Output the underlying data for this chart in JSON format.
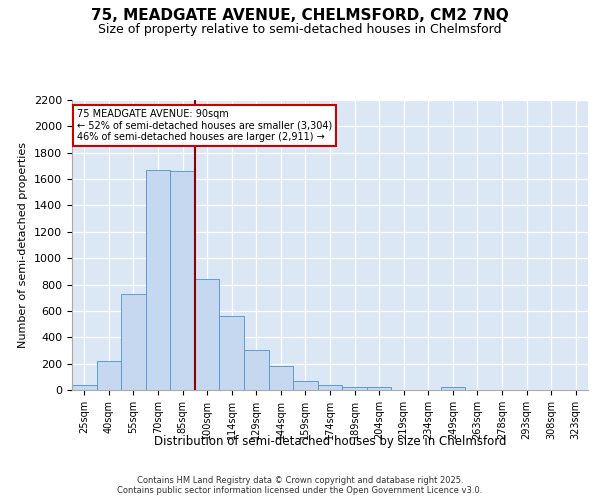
{
  "title_line1": "75, MEADGATE AVENUE, CHELMSFORD, CM2 7NQ",
  "title_line2": "Size of property relative to semi-detached houses in Chelmsford",
  "xlabel": "Distribution of semi-detached houses by size in Chelmsford",
  "ylabel": "Number of semi-detached properties",
  "bar_labels": [
    "25sqm",
    "40sqm",
    "55sqm",
    "70sqm",
    "85sqm",
    "100sqm",
    "114sqm",
    "129sqm",
    "144sqm",
    "159sqm",
    "174sqm",
    "189sqm",
    "204sqm",
    "219sqm",
    "234sqm",
    "249sqm",
    "263sqm",
    "278sqm",
    "293sqm",
    "308sqm",
    "323sqm"
  ],
  "bar_values": [
    40,
    220,
    730,
    1670,
    1660,
    840,
    560,
    300,
    180,
    70,
    40,
    25,
    20,
    0,
    0,
    20,
    0,
    0,
    0,
    0,
    0
  ],
  "bar_color": "#c5d8f0",
  "bar_edge_color": "#5b9bd5",
  "ylim": [
    0,
    2200
  ],
  "yticks": [
    0,
    200,
    400,
    600,
    800,
    1000,
    1200,
    1400,
    1600,
    1800,
    2000,
    2200
  ],
  "red_line_x": 4.5,
  "red_line_color": "#8b0000",
  "annotation_title": "75 MEADGATE AVENUE: 90sqm",
  "annotation_line1": "← 52% of semi-detached houses are smaller (3,304)",
  "annotation_line2": "46% of semi-detached houses are larger (2,911) →",
  "annotation_box_color": "#cc0000",
  "bg_color": "#dce7f5",
  "grid_color": "#c0cfe8",
  "footer_line1": "Contains HM Land Registry data © Crown copyright and database right 2025.",
  "footer_line2": "Contains public sector information licensed under the Open Government Licence v3.0."
}
